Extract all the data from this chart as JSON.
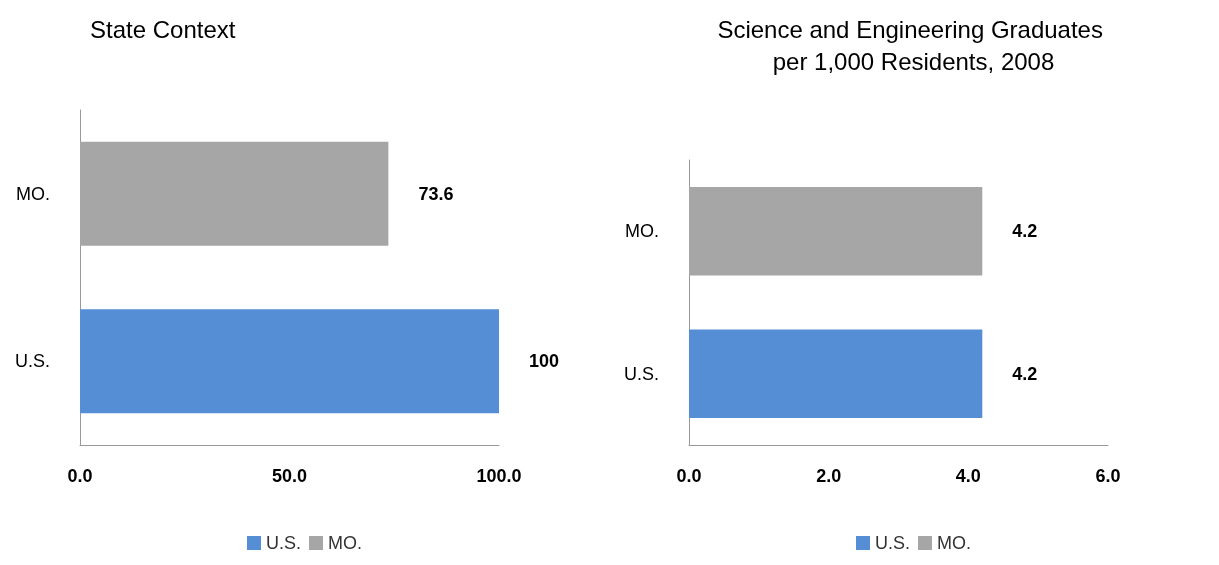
{
  "chart_data": [
    {
      "type": "bar",
      "orientation": "horizontal",
      "stacked": true,
      "title": "State Context",
      "categories": [
        "MO.",
        "U.S."
      ],
      "series": [
        {
          "name": "U.S.",
          "color": "#558ed5",
          "values": [
            null,
            100
          ]
        },
        {
          "name": "MO.",
          "color": "#a6a6a6",
          "values": [
            73.6,
            null
          ]
        }
      ],
      "xlim": [
        0,
        100
      ],
      "xticks": [
        {
          "value": 0,
          "label": "0.0"
        },
        {
          "value": 50,
          "label": "50.0"
        },
        {
          "value": 100,
          "label": "100.0"
        }
      ],
      "data_labels": true,
      "legend": "bottom",
      "grid": false
    },
    {
      "type": "bar",
      "orientation": "horizontal",
      "stacked": true,
      "title": "Science and Engineering Graduates per 1,000 Residents, 2008",
      "categories": [
        "MO.",
        "U.S."
      ],
      "series": [
        {
          "name": "U.S.",
          "color": "#558ed5",
          "values": [
            null,
            4.2
          ]
        },
        {
          "name": "MO.",
          "color": "#a6a6a6",
          "values": [
            4.2,
            null
          ]
        }
      ],
      "xlim": [
        0,
        6
      ],
      "xticks": [
        {
          "value": 0,
          "label": "0.0"
        },
        {
          "value": 2,
          "label": "2.0"
        },
        {
          "value": 4,
          "label": "4.0"
        },
        {
          "value": 6,
          "label": "6.0"
        }
      ],
      "data_labels": true,
      "legend": "bottom",
      "grid": false
    }
  ]
}
